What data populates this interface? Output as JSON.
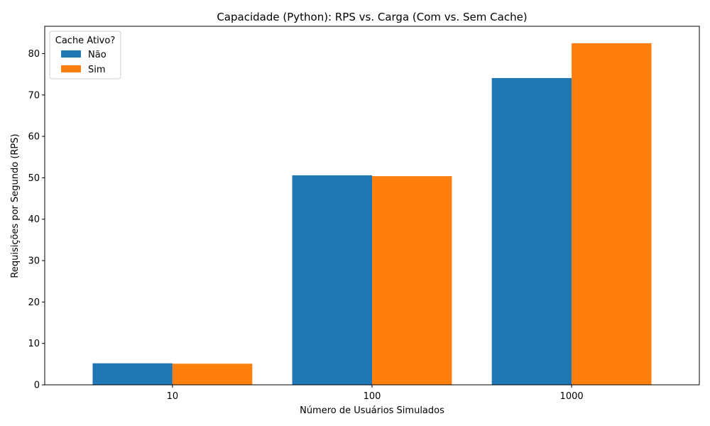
{
  "chart_data": {
    "type": "bar",
    "title": "Capacidade (Python): RPS vs. Carga (Com vs. Sem Cache)",
    "xlabel": "Número de Usuários Simulados",
    "ylabel": "Requisições por Segundo (RPS)",
    "categories": [
      "10",
      "100",
      "1000"
    ],
    "series": [
      {
        "name": "Não",
        "color": "#1f77b4",
        "values": [
          5.2,
          50.6,
          74.1
        ]
      },
      {
        "name": "Sim",
        "color": "#ff7f0e",
        "values": [
          5.1,
          50.4,
          82.5
        ]
      }
    ],
    "ylim": [
      0,
      86.6
    ],
    "yticks": [
      0,
      10,
      20,
      30,
      40,
      50,
      60,
      70,
      80
    ],
    "grid": false,
    "legend": {
      "title": "Cache Ativo?",
      "position": "top-left"
    }
  }
}
